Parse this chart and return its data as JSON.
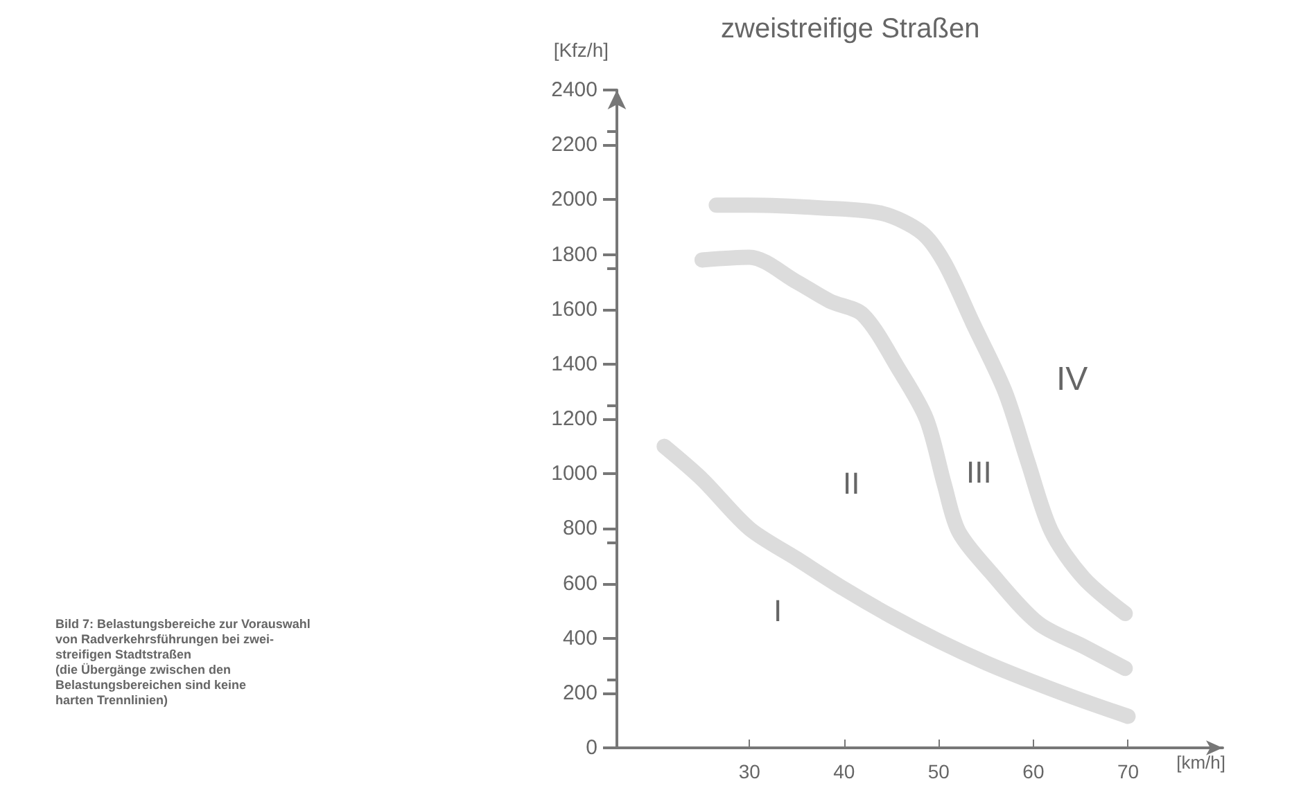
{
  "chart_data": {
    "type": "line",
    "title": "zweistreifige Straßen",
    "xlabel": "[km/h]",
    "ylabel": "[Kfz/h]",
    "xlim": [
      16,
      80
    ],
    "xticks": [
      30,
      40,
      50,
      60,
      70
    ],
    "ylim": [
      0,
      2400
    ],
    "yticks": [
      0,
      200,
      400,
      600,
      800,
      1000,
      1200,
      1400,
      1600,
      1800,
      2000,
      2200,
      2400
    ],
    "grid": false,
    "line_style": "solid",
    "series": [
      {
        "color": "#dcdcdc",
        "x": [
          21,
          25,
          30,
          35,
          40,
          45,
          50,
          55,
          60,
          65,
          70
        ],
        "values": [
          1100,
          980,
          800,
          690,
          580,
          480,
          390,
          310,
          240,
          175,
          115
        ]
      },
      {
        "color": "#dcdcdc",
        "x": [
          25,
          30,
          35,
          38.5,
          42,
          45.8,
          48.7,
          50.6,
          52.1,
          55.5,
          60.5,
          65.3,
          69.7
        ],
        "values": [
          1780,
          1790,
          1700,
          1630,
          1580,
          1380,
          1200,
          960,
          790,
          640,
          455,
          370,
          290
        ]
      },
      {
        "color": "#dcdcdc",
        "x": [
          26.5,
          30,
          37.5,
          44,
          48.2,
          50.6,
          53.6,
          57,
          59.4,
          61.9,
          65.3,
          69.7
        ],
        "values": [
          1980,
          1980,
          1970,
          1950,
          1880,
          1770,
          1550,
          1300,
          1045,
          790,
          620,
          490
        ]
      }
    ],
    "annotations": [
      "I",
      "II",
      "III",
      "IV",
      "Bild 7: Belastungsbereiche zur Vorauswahl\nvon Radverkehrsführungen bei zwei-\nstreifigen Stadtstraßen\n(die Übergänge zwischen den\nBelastungsbereichen sind keine\nharten Trennlinien)"
    ]
  }
}
